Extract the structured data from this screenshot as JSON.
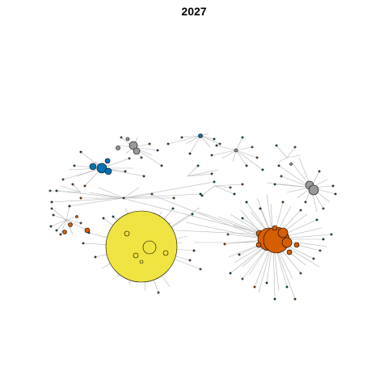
{
  "title": "2027",
  "colors": {
    "yellow": "#F0E442",
    "orange": "#D55E00",
    "blue": "#0072B2",
    "gray": "#999999",
    "teal": "#009E73",
    "edge": "#b3b3b3"
  }
}
